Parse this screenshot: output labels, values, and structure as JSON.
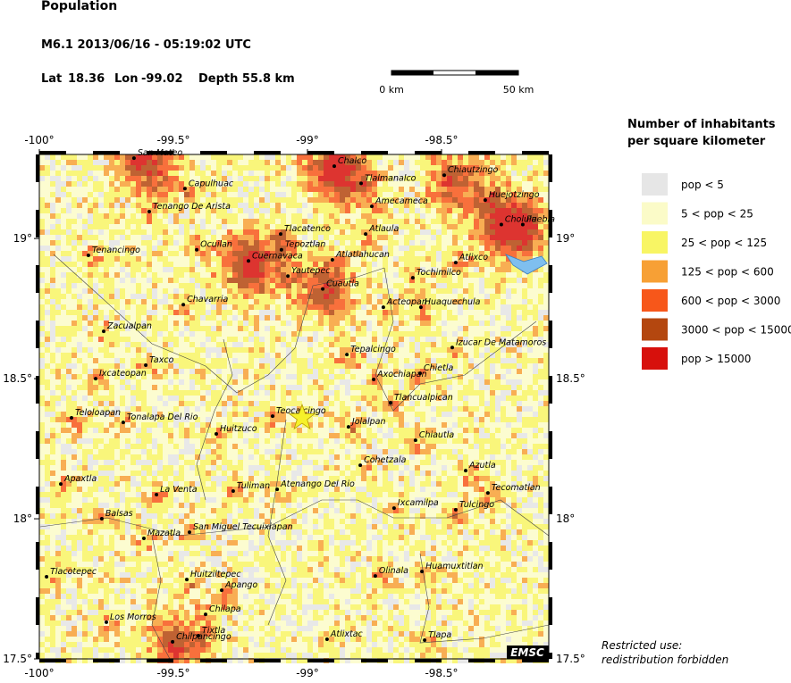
{
  "header": {
    "title": "Population",
    "event": "M6.1  2013/06/16 - 05:19:02 UTC",
    "lat_label": "Lat",
    "lat": 18.36,
    "lon_label": "Lon",
    "lon": -99.02,
    "depth": "Depth  55.8 km"
  },
  "scale_bar": {
    "start": "0 km",
    "end": "50 km"
  },
  "map": {
    "lon_range": [
      -100,
      -98.1
    ],
    "lat_range": [
      17.5,
      19.3
    ],
    "lon_ticks": [
      {
        "value": -100,
        "label": "-100°"
      },
      {
        "value": -99.5,
        "label": "-99.5°"
      },
      {
        "value": -99,
        "label": "-99°"
      },
      {
        "value": -98.5,
        "label": "-98.5°"
      }
    ],
    "lat_ticks": [
      {
        "value": 17.5,
        "label": "17.5°"
      },
      {
        "value": 18,
        "label": "18°"
      },
      {
        "value": 18.5,
        "label": "18.5°"
      },
      {
        "value": 19,
        "label": "19°"
      }
    ],
    "towns": [
      {
        "name": "Chalco",
        "lon": -98.9,
        "lat": 19.258
      },
      {
        "name": "Tlalmanalco",
        "lon": -98.8,
        "lat": 19.197
      },
      {
        "name": "Amecameca",
        "lon": -98.76,
        "lat": 19.115
      },
      {
        "name": "Atlaula",
        "lon": -98.783,
        "lat": 19.016
      },
      {
        "name": "San Mateo",
        "lon": -99.647,
        "lat": 19.287
      },
      {
        "name": "Capulhuac",
        "lon": -99.457,
        "lat": 19.178
      },
      {
        "name": "Tenango De Arista",
        "lon": -99.59,
        "lat": 19.096
      },
      {
        "name": "Chiautzingo",
        "lon": -98.49,
        "lat": 19.226
      },
      {
        "name": "Huejotzingo",
        "lon": -98.337,
        "lat": 19.137
      },
      {
        "name": "Cholula",
        "lon": -98.277,
        "lat": 19.05
      },
      {
        "name": "Puebla",
        "lon": -98.197,
        "lat": 19.05
      },
      {
        "name": "Tenancingo",
        "lon": -99.817,
        "lat": 18.94
      },
      {
        "name": "Ocuilan",
        "lon": -99.413,
        "lat": 18.96
      },
      {
        "name": "Cuernavaca",
        "lon": -99.22,
        "lat": 18.92
      },
      {
        "name": "Tlacatenco",
        "lon": -99.1,
        "lat": 19.016
      },
      {
        "name": "Tepoztlan",
        "lon": -99.097,
        "lat": 18.96
      },
      {
        "name": "Yautepec",
        "lon": -99.073,
        "lat": 18.866
      },
      {
        "name": "Atlatlahucan",
        "lon": -98.907,
        "lat": 18.924
      },
      {
        "name": "Tochimilco",
        "lon": -98.607,
        "lat": 18.86
      },
      {
        "name": "Atlixco",
        "lon": -98.447,
        "lat": 18.914
      },
      {
        "name": "Cuautla",
        "lon": -98.943,
        "lat": 18.82
      },
      {
        "name": "Chavarria",
        "lon": -99.463,
        "lat": 18.764
      },
      {
        "name": "Acteopan",
        "lon": -98.717,
        "lat": 18.755
      },
      {
        "name": "Huaquechula",
        "lon": -98.577,
        "lat": 18.755
      },
      {
        "name": "Zacualpan",
        "lon": -99.76,
        "lat": 18.669
      },
      {
        "name": "Tepalcingo",
        "lon": -98.853,
        "lat": 18.586
      },
      {
        "name": "Izucar De Matamoros",
        "lon": -98.46,
        "lat": 18.611
      },
      {
        "name": "Taxco",
        "lon": -99.603,
        "lat": 18.548
      },
      {
        "name": "Ixcateopan",
        "lon": -99.79,
        "lat": 18.5
      },
      {
        "name": "Axochiapan",
        "lon": -98.753,
        "lat": 18.497
      },
      {
        "name": "Chietla",
        "lon": -98.58,
        "lat": 18.519
      },
      {
        "name": "Tlancualpican",
        "lon": -98.69,
        "lat": 18.414
      },
      {
        "name": "Teocalcingo",
        "lon": -99.13,
        "lat": 18.366
      },
      {
        "name": "Jolalpan",
        "lon": -98.847,
        "lat": 18.328
      },
      {
        "name": "Teloloapan",
        "lon": -99.88,
        "lat": 18.36
      },
      {
        "name": "Tonalapa Del Rio",
        "lon": -99.687,
        "lat": 18.344
      },
      {
        "name": "Huitzuco",
        "lon": -99.34,
        "lat": 18.303
      },
      {
        "name": "Chiautla",
        "lon": -98.597,
        "lat": 18.28
      },
      {
        "name": "Cohetzala",
        "lon": -98.803,
        "lat": 18.191
      },
      {
        "name": "Azutla",
        "lon": -98.41,
        "lat": 18.172
      },
      {
        "name": "Apaxtla",
        "lon": -99.92,
        "lat": 18.124
      },
      {
        "name": "La Venta",
        "lon": -99.563,
        "lat": 18.086
      },
      {
        "name": "Tuliman",
        "lon": -99.277,
        "lat": 18.099
      },
      {
        "name": "Atenango Del Rio",
        "lon": -99.113,
        "lat": 18.105
      },
      {
        "name": "Tecomatlan",
        "lon": -98.327,
        "lat": 18.092
      },
      {
        "name": "Ixcamilpa",
        "lon": -98.677,
        "lat": 18.038
      },
      {
        "name": "Tulcingo",
        "lon": -98.447,
        "lat": 18.032
      },
      {
        "name": "Balsas",
        "lon": -99.767,
        "lat": 18.0
      },
      {
        "name": "Mazatla",
        "lon": -99.61,
        "lat": 17.93
      },
      {
        "name": "San Miguel Tecuixiapan",
        "lon": -99.44,
        "lat": 17.952
      },
      {
        "name": "Tlacotepec",
        "lon": -99.973,
        "lat": 17.793
      },
      {
        "name": "Huitziltepec",
        "lon": -99.45,
        "lat": 17.783
      },
      {
        "name": "Apango",
        "lon": -99.32,
        "lat": 17.745
      },
      {
        "name": "Olinala",
        "lon": -98.747,
        "lat": 17.796
      },
      {
        "name": "Huamuxtitlan",
        "lon": -98.573,
        "lat": 17.812
      },
      {
        "name": "Chilapa",
        "lon": -99.38,
        "lat": 17.659
      },
      {
        "name": "Los Morros",
        "lon": -99.75,
        "lat": 17.631
      },
      {
        "name": "Tixtla",
        "lon": -99.407,
        "lat": 17.583
      },
      {
        "name": "Chilpancingo",
        "lon": -99.503,
        "lat": 17.561
      },
      {
        "name": "Atlixtac",
        "lon": -98.927,
        "lat": 17.57
      },
      {
        "name": "Tlapa",
        "lon": -98.563,
        "lat": 17.567
      }
    ]
  },
  "legend": {
    "title": [
      "Number of inhabitants",
      "per square kilometer"
    ],
    "items": [
      {
        "label": "pop < 5",
        "color": "#e6e6e6"
      },
      {
        "label": "5 < pop < 25",
        "color": "#fbfbc8"
      },
      {
        "label": "25 < pop < 125",
        "color": "#f8f564"
      },
      {
        "label": "125 < pop < 600",
        "color": "#f7a035"
      },
      {
        "label": "600 < pop < 3000",
        "color": "#f7571a"
      },
      {
        "label": "3000 < pop < 15000",
        "color": "#b4470f"
      },
      {
        "label": "pop > 15000",
        "color": "#d7100c"
      }
    ]
  },
  "footer": {
    "logo": "EMSC",
    "note": [
      "Restricted use:",
      "redistribution forbidden"
    ]
  }
}
